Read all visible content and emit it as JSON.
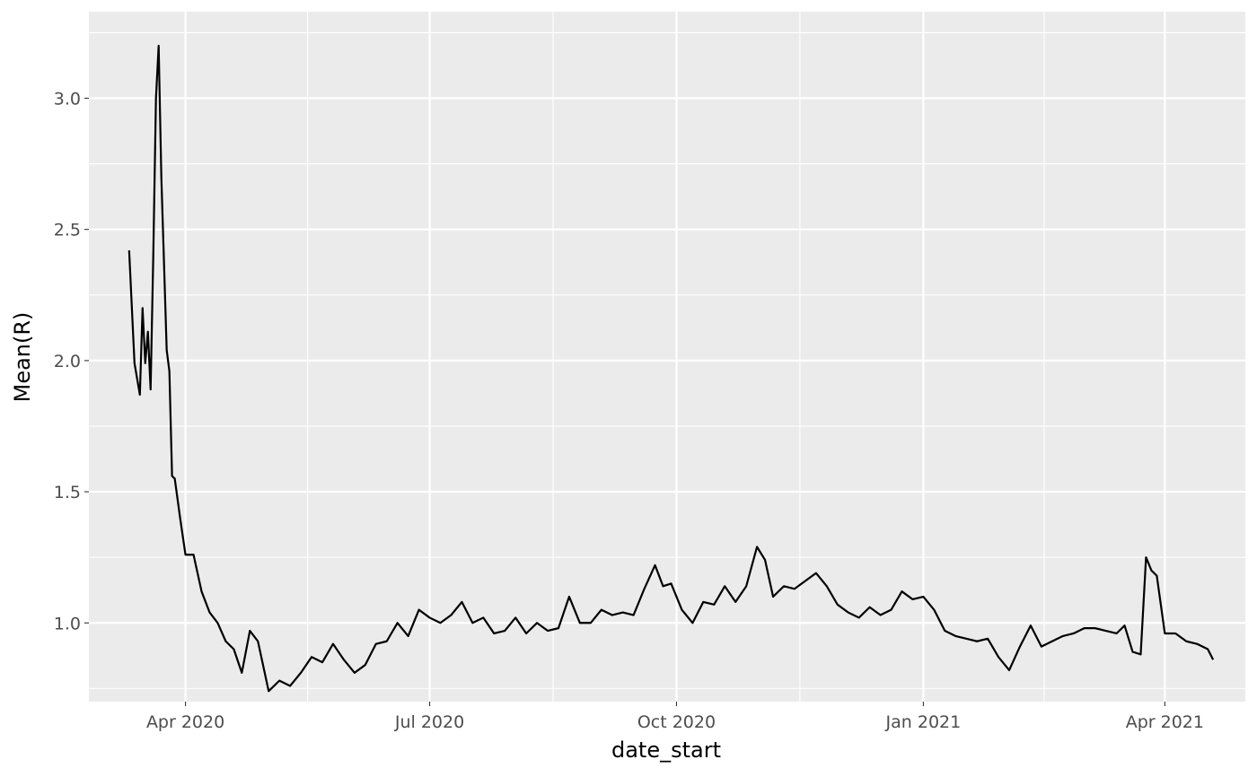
{
  "chart_data": {
    "type": "line",
    "title": "",
    "xlabel": "date_start",
    "ylabel": "Mean(R)",
    "grid": true,
    "legend": "none",
    "background": "#ebebeb",
    "line_color": "#000000",
    "grid_color": "#ffffff",
    "xlim": [
      "2020-02-25",
      "2021-05-01"
    ],
    "ylim": [
      0.7,
      3.33
    ],
    "x_ticks": [
      {
        "date": "2020-04-01",
        "label": "Apr 2020"
      },
      {
        "date": "2020-07-01",
        "label": "Jul 2020"
      },
      {
        "date": "2020-10-01",
        "label": "Oct 2020"
      },
      {
        "date": "2021-01-01",
        "label": "Jan 2021"
      },
      {
        "date": "2021-04-01",
        "label": "Apr 2021"
      }
    ],
    "y_ticks": [
      {
        "value": 1.0,
        "label": "1.0"
      },
      {
        "value": 1.5,
        "label": "1.5"
      },
      {
        "value": 2.0,
        "label": "2.0"
      },
      {
        "value": 2.5,
        "label": "2.5"
      },
      {
        "value": 3.0,
        "label": "3.0"
      }
    ],
    "series": [
      {
        "x": [
          "2020-03-11",
          "2020-03-13",
          "2020-03-15",
          "2020-03-16",
          "2020-03-17",
          "2020-03-18",
          "2020-03-19",
          "2020-03-20",
          "2020-03-21",
          "2020-03-22",
          "2020-03-23",
          "2020-03-24",
          "2020-03-25",
          "2020-03-26",
          "2020-03-27",
          "2020-03-28",
          "2020-03-30",
          "2020-03-31",
          "2020-04-01",
          "2020-04-04",
          "2020-04-07",
          "2020-04-10",
          "2020-04-13",
          "2020-04-16",
          "2020-04-19",
          "2020-04-22",
          "2020-04-25",
          "2020-04-28",
          "2020-05-02",
          "2020-05-06",
          "2020-05-10",
          "2020-05-14",
          "2020-05-18",
          "2020-05-22",
          "2020-05-26",
          "2020-05-30",
          "2020-06-03",
          "2020-06-07",
          "2020-06-11",
          "2020-06-15",
          "2020-06-19",
          "2020-06-23",
          "2020-06-27",
          "2020-07-01",
          "2020-07-05",
          "2020-07-09",
          "2020-07-13",
          "2020-07-17",
          "2020-07-21",
          "2020-07-25",
          "2020-07-29",
          "2020-08-02",
          "2020-08-06",
          "2020-08-10",
          "2020-08-14",
          "2020-08-18",
          "2020-08-22",
          "2020-08-26",
          "2020-08-30",
          "2020-09-03",
          "2020-09-07",
          "2020-09-11",
          "2020-09-15",
          "2020-09-19",
          "2020-09-23",
          "2020-09-26",
          "2020-09-29",
          "2020-10-03",
          "2020-10-07",
          "2020-10-11",
          "2020-10-15",
          "2020-10-19",
          "2020-10-23",
          "2020-10-27",
          "2020-10-31",
          "2020-11-03",
          "2020-11-06",
          "2020-11-10",
          "2020-11-14",
          "2020-11-18",
          "2020-11-22",
          "2020-11-26",
          "2020-11-30",
          "2020-12-04",
          "2020-12-08",
          "2020-12-12",
          "2020-12-16",
          "2020-12-20",
          "2020-12-24",
          "2020-12-28",
          "2021-01-01",
          "2021-01-05",
          "2021-01-09",
          "2021-01-13",
          "2021-01-17",
          "2021-01-21",
          "2021-01-25",
          "2021-01-29",
          "2021-02-02",
          "2021-02-06",
          "2021-02-10",
          "2021-02-14",
          "2021-02-18",
          "2021-02-22",
          "2021-02-26",
          "2021-03-02",
          "2021-03-06",
          "2021-03-10",
          "2021-03-14",
          "2021-03-17",
          "2021-03-20",
          "2021-03-23",
          "2021-03-25",
          "2021-03-27",
          "2021-03-29",
          "2021-04-01",
          "2021-04-05",
          "2021-04-09",
          "2021-04-13",
          "2021-04-17",
          "2021-04-19"
        ],
        "y": [
          2.42,
          1.99,
          1.87,
          2.2,
          1.99,
          2.11,
          1.89,
          2.4,
          3.0,
          3.2,
          2.7,
          2.37,
          2.04,
          1.96,
          1.56,
          1.55,
          1.4,
          1.33,
          1.26,
          1.26,
          1.12,
          1.04,
          1.0,
          0.93,
          0.9,
          0.81,
          0.97,
          0.93,
          0.74,
          0.78,
          0.76,
          0.81,
          0.87,
          0.85,
          0.92,
          0.86,
          0.81,
          0.84,
          0.92,
          0.93,
          1.0,
          0.95,
          1.05,
          1.02,
          1.0,
          1.03,
          1.08,
          1.0,
          1.02,
          0.96,
          0.97,
          1.02,
          0.96,
          1.0,
          0.97,
          0.98,
          1.1,
          1.0,
          1.0,
          1.05,
          1.03,
          1.04,
          1.03,
          1.13,
          1.22,
          1.14,
          1.15,
          1.05,
          1.0,
          1.08,
          1.07,
          1.14,
          1.08,
          1.14,
          1.29,
          1.24,
          1.1,
          1.14,
          1.13,
          1.16,
          1.19,
          1.14,
          1.07,
          1.04,
          1.02,
          1.06,
          1.03,
          1.05,
          1.12,
          1.09,
          1.1,
          1.05,
          0.97,
          0.95,
          0.94,
          0.93,
          0.94,
          0.87,
          0.82,
          0.91,
          0.99,
          0.91,
          0.93,
          0.95,
          0.96,
          0.98,
          0.98,
          0.97,
          0.96,
          0.99,
          0.89,
          0.88,
          1.25,
          1.2,
          1.18,
          0.96,
          0.96,
          0.93,
          0.92,
          0.9,
          0.86
        ]
      }
    ]
  }
}
